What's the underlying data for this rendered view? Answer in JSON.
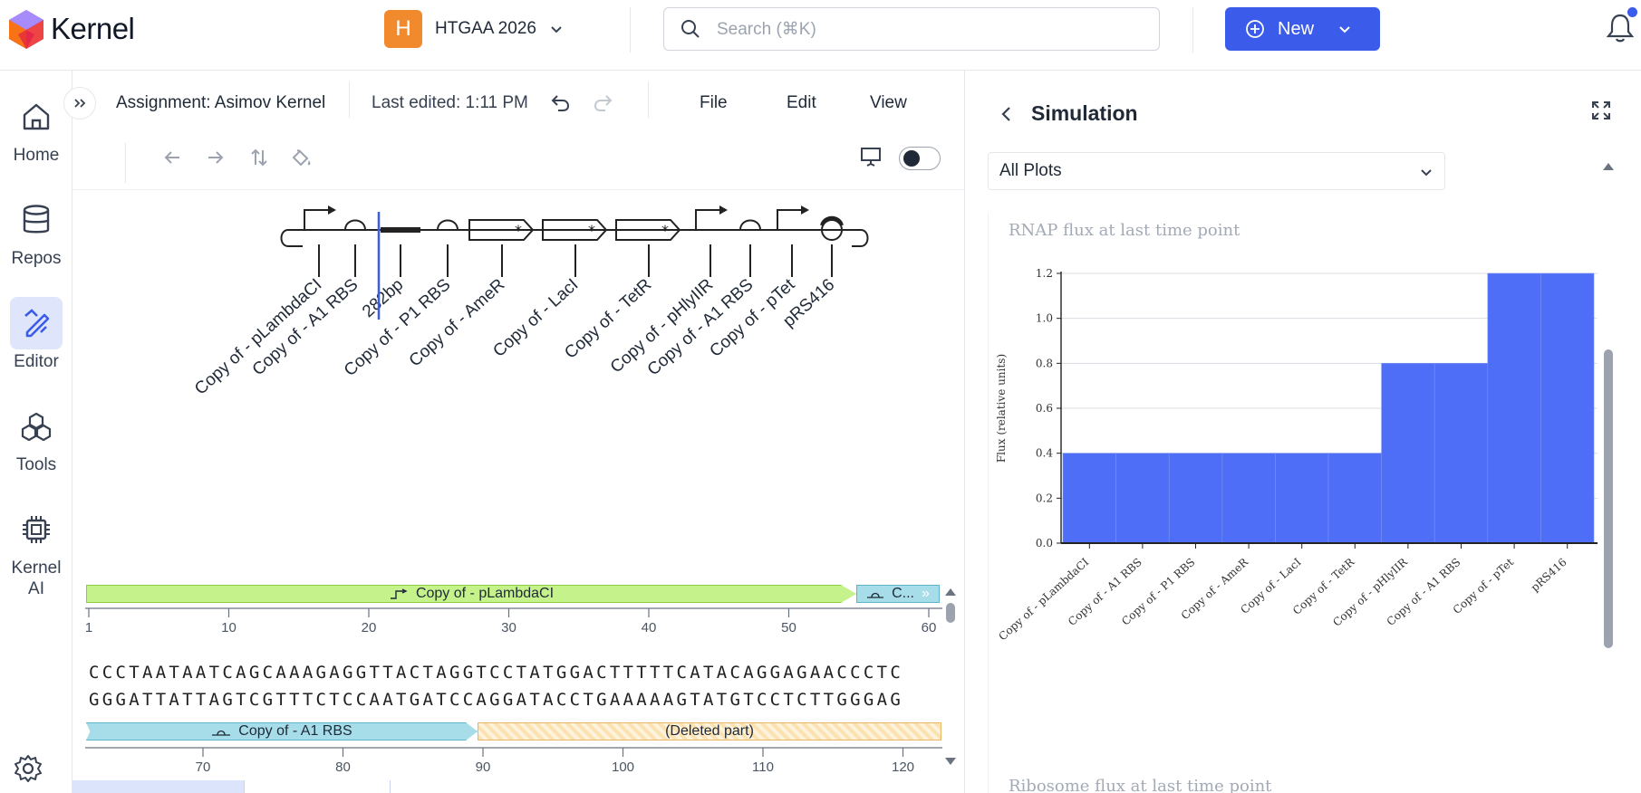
{
  "app": {
    "name": "Kernel"
  },
  "workspace": {
    "initial": "H",
    "name": "HTGAA 2026"
  },
  "search": {
    "placeholder": "Search (⌘K)"
  },
  "new_button": {
    "label": "New"
  },
  "sidebar": {
    "items": [
      {
        "label": "Home",
        "icon": "home-icon"
      },
      {
        "label": "Repos",
        "icon": "database-icon"
      },
      {
        "label": "Editor",
        "icon": "editor-pen-icon",
        "active": true
      },
      {
        "label": "Tools",
        "icon": "cubes-icon"
      },
      {
        "label": "Kernel\nAI",
        "icon": "chip-icon"
      }
    ]
  },
  "editor": {
    "assignment": "Assignment: Asimov Kernel",
    "last_edited": "Last edited: 1:11 PM",
    "menu": [
      "File",
      "Edit",
      "View"
    ]
  },
  "design": {
    "parts": [
      {
        "label": "Copy of - pLambdaCI",
        "glyph": "promoter"
      },
      {
        "label": "Copy of - A1 RBS",
        "glyph": "rbs"
      },
      {
        "label": "282bp",
        "glyph": "spacer"
      },
      {
        "label": "Copy of - P1 RBS",
        "glyph": "rbs"
      },
      {
        "label": "Copy of - AmeR",
        "glyph": "cds"
      },
      {
        "label": "Copy of - LacI",
        "glyph": "cds"
      },
      {
        "label": "Copy of - TetR",
        "glyph": "cds"
      },
      {
        "label": "Copy of - pHlyIIR",
        "glyph": "promoter"
      },
      {
        "label": "Copy of - A1 RBS",
        "glyph": "rbs"
      },
      {
        "label": "Copy of - pTet",
        "glyph": "promoter"
      },
      {
        "label": "pRS416",
        "glyph": "origin"
      }
    ]
  },
  "sequence": {
    "top_feature": "Copy of - pLambdaCI",
    "top_feature_truncated": "C...",
    "ruler_top": [
      "1",
      "10",
      "20",
      "30",
      "40",
      "50",
      "60"
    ],
    "forward": "CCCTAATAATCAGCAAAGAGGTTACTAGGTCCTATGGACTTTTTCATACAGGAGAACCCTC",
    "reverse": "GGGATTATTAGTCGTTTCTCCAATGATCCAGGATACCTGAAAAAGTATGTCCTCTTGGGAG",
    "bottom_feature_1": "Copy of - A1 RBS",
    "bottom_feature_2": "(Deleted part)",
    "ruler_bottom": [
      "70",
      "80",
      "90",
      "100",
      "110",
      "120"
    ]
  },
  "simulation": {
    "title": "Simulation",
    "selector": "All Plots",
    "next_chart_title": "Ribosome flux at last time point"
  },
  "chart_data": {
    "type": "bar",
    "title": "RNAP flux at last time point",
    "xlabel": "",
    "ylabel": "Flux (relative units)",
    "ylim": [
      0,
      1.2
    ],
    "yticks": [
      "0.0",
      "0.2",
      "0.4",
      "0.6",
      "0.8",
      "1.0",
      "1.2"
    ],
    "categories": [
      "Copy of - pLambdaCI",
      "Copy of - A1 RBS",
      "Copy of - P1 RBS",
      "Copy of - AmeR",
      "Copy of - LacI",
      "Copy of - TetR",
      "Copy of - pHlyIIR",
      "Copy of - A1 RBS",
      "Copy of - pTet",
      "pRS416"
    ],
    "values": [
      0.4,
      0.4,
      0.4,
      0.4,
      0.4,
      0.4,
      0.8,
      0.8,
      1.2,
      1.2
    ],
    "bar_color": "#4f6ef7"
  },
  "colors": {
    "accent": "#3b5bea",
    "promoter_feature": "#c5f28a",
    "rbs_feature": "#a6dde8",
    "deleted_feature": "#fbe2b0"
  }
}
